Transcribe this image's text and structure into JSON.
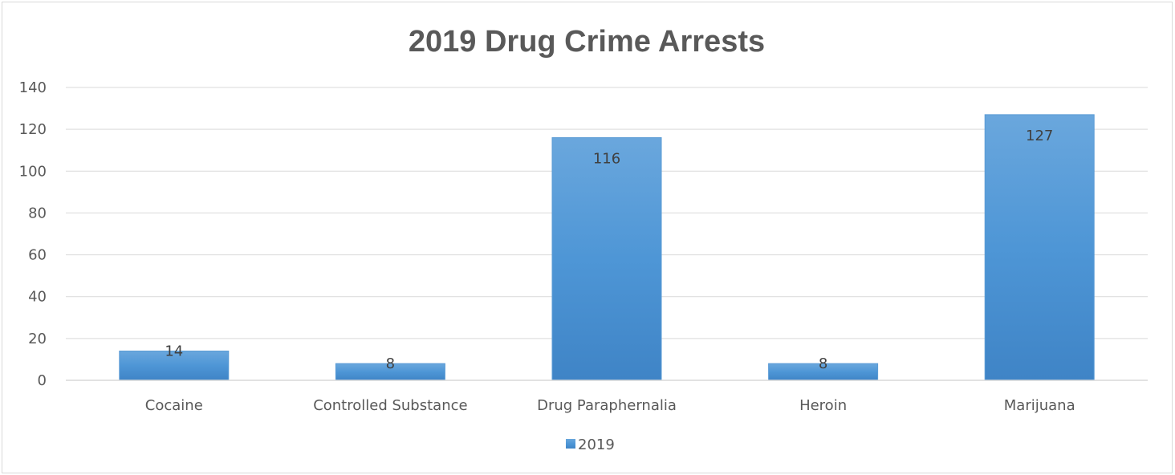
{
  "chart_data": {
    "type": "bar",
    "title": "2019 Drug Crime Arrests",
    "categories": [
      "Cocaine",
      "Controlled Substance",
      "Drug Paraphernalia",
      "Heroin",
      "Marijuana"
    ],
    "series": [
      {
        "name": "2019",
        "values": [
          14,
          8,
          116,
          8,
          127
        ],
        "color": "#4e94d4"
      }
    ],
    "y_ticks": [
      "0",
      "20",
      "40",
      "60",
      "80",
      "100",
      "120",
      "140"
    ],
    "ylim": [
      0,
      140
    ],
    "grid": true,
    "legend_position": "bottom",
    "data_labels": true
  }
}
